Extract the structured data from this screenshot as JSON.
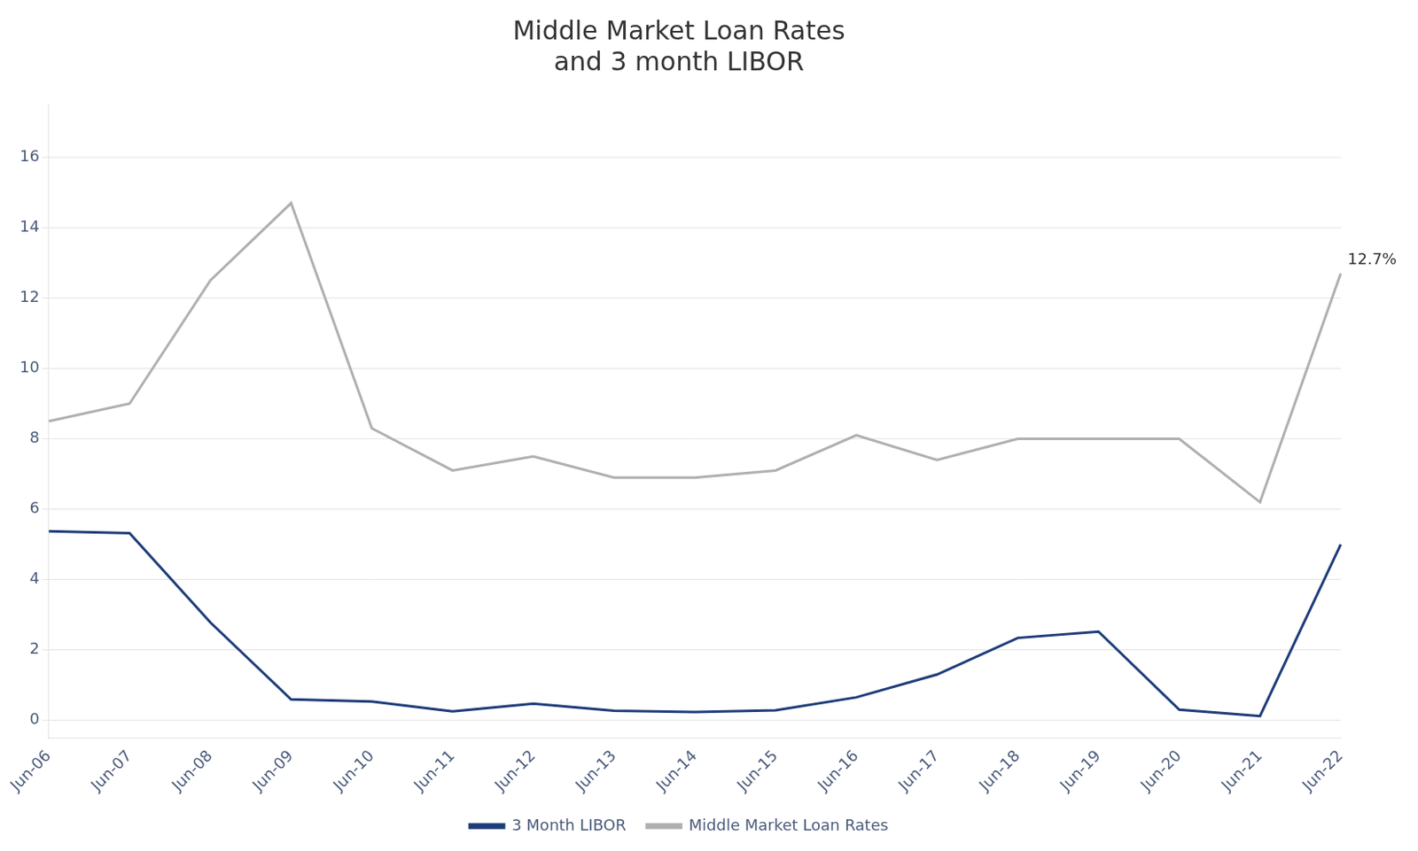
{
  "chart_data": {
    "type": "line",
    "title": "Middle Market Loan Rates\nand 3 month LIBOR",
    "categories": [
      "Jun-06",
      "Jun-07",
      "Jun-08",
      "Jun-09",
      "Jun-10",
      "Jun-11",
      "Jun-12",
      "Jun-13",
      "Jun-14",
      "Jun-15",
      "Jun-16",
      "Jun-17",
      "Jun-18",
      "Jun-19",
      "Jun-20",
      "Jun-21",
      "Jun-22"
    ],
    "series": [
      {
        "name": "3 Month LIBOR",
        "color": "#1f3d7a",
        "values": [
          5.37,
          5.32,
          2.78,
          0.59,
          0.53,
          0.25,
          0.47,
          0.27,
          0.23,
          0.28,
          0.65,
          1.3,
          2.34,
          2.52,
          0.3,
          0.12,
          5.0
        ]
      },
      {
        "name": "Middle Market Loan Rates",
        "color": "#b0b0b0",
        "values": [
          8.5,
          9.0,
          12.5,
          14.7,
          8.3,
          7.1,
          7.5,
          6.9,
          6.9,
          7.1,
          8.1,
          7.4,
          8.0,
          8.0,
          8.0,
          6.2,
          12.7
        ]
      }
    ],
    "ylim": [
      -0.5,
      17.5
    ],
    "yticks": [
      0,
      2,
      4,
      6,
      8,
      10,
      12,
      14,
      16
    ],
    "grid": true,
    "legend": "bottom",
    "marker": "none",
    "line_style": "solid",
    "annotations": [
      {
        "text": "12.7%",
        "x": "Jun-22",
        "y": 12.7
      }
    ]
  }
}
